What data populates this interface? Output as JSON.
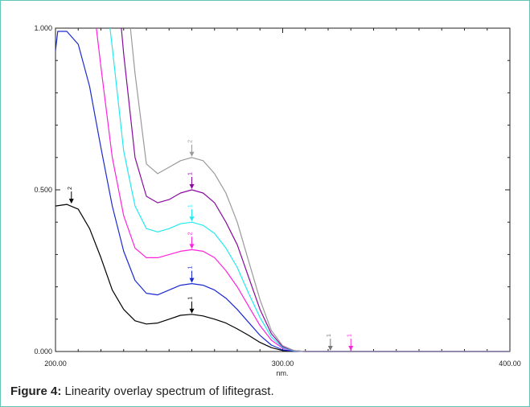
{
  "caption": {
    "label": "Figure 4:",
    "text": " Linearity overlay spectrum of lifitegrast."
  },
  "chart_data": {
    "type": "line",
    "title": "",
    "xlabel": "nm.",
    "ylabel": "",
    "xlim": [
      200,
      400
    ],
    "ylim": [
      0,
      1
    ],
    "x_ticks": [
      "200.00",
      "300.00",
      "400.00"
    ],
    "y_ticks": [
      "0.000",
      "0.500",
      "1.000"
    ],
    "grid": false,
    "series": [
      {
        "color": "#000000",
        "points": [
          [
            200,
            0.45
          ],
          [
            205,
            0.455
          ],
          [
            210,
            0.44
          ],
          [
            215,
            0.38
          ],
          [
            220,
            0.29
          ],
          [
            225,
            0.19
          ],
          [
            230,
            0.13
          ],
          [
            235,
            0.095
          ],
          [
            240,
            0.085
          ],
          [
            245,
            0.088
          ],
          [
            250,
            0.1
          ],
          [
            255,
            0.112
          ],
          [
            260,
            0.115
          ],
          [
            265,
            0.11
          ],
          [
            270,
            0.1
          ],
          [
            275,
            0.088
          ],
          [
            280,
            0.07
          ],
          [
            285,
            0.05
          ],
          [
            290,
            0.028
          ],
          [
            295,
            0.012
          ],
          [
            300,
            0.003
          ],
          [
            305,
            0.001
          ],
          [
            310,
            0
          ],
          [
            400,
            0
          ]
        ],
        "peak_marker": {
          "x": 260,
          "y": 0.115,
          "label": "1"
        },
        "start_marker": {
          "x": 207,
          "y": 0.455,
          "label": "2"
        }
      },
      {
        "color": "#1a2ad0",
        "points": [
          [
            200,
            0.93
          ],
          [
            201,
            0.99
          ],
          [
            205,
            0.99
          ],
          [
            210,
            0.95
          ],
          [
            215,
            0.82
          ],
          [
            220,
            0.63
          ],
          [
            225,
            0.45
          ],
          [
            230,
            0.31
          ],
          [
            235,
            0.22
          ],
          [
            240,
            0.18
          ],
          [
            245,
            0.175
          ],
          [
            250,
            0.19
          ],
          [
            255,
            0.205
          ],
          [
            260,
            0.21
          ],
          [
            265,
            0.205
          ],
          [
            270,
            0.19
          ],
          [
            275,
            0.165
          ],
          [
            280,
            0.13
          ],
          [
            285,
            0.09
          ],
          [
            290,
            0.05
          ],
          [
            295,
            0.02
          ],
          [
            300,
            0.005
          ],
          [
            305,
            0.001
          ],
          [
            310,
            0
          ],
          [
            400,
            0
          ]
        ],
        "peak_marker": {
          "x": 260,
          "y": 0.21,
          "label": "1"
        }
      },
      {
        "color": "#ff22dd",
        "points": [
          [
            218,
            1.0
          ],
          [
            220,
            0.88
          ],
          [
            225,
            0.6
          ],
          [
            230,
            0.42
          ],
          [
            235,
            0.32
          ],
          [
            240,
            0.29
          ],
          [
            245,
            0.29
          ],
          [
            250,
            0.3
          ],
          [
            255,
            0.31
          ],
          [
            260,
            0.315
          ],
          [
            265,
            0.31
          ],
          [
            270,
            0.29
          ],
          [
            275,
            0.25
          ],
          [
            280,
            0.2
          ],
          [
            285,
            0.14
          ],
          [
            290,
            0.08
          ],
          [
            295,
            0.035
          ],
          [
            300,
            0.01
          ],
          [
            305,
            0.002
          ],
          [
            310,
            0
          ],
          [
            400,
            0
          ]
        ],
        "peak_marker": {
          "x": 260,
          "y": 0.315,
          "label": "2"
        }
      },
      {
        "color": "#22eaf0",
        "points": [
          [
            224,
            1.0
          ],
          [
            225,
            0.94
          ],
          [
            230,
            0.62
          ],
          [
            235,
            0.45
          ],
          [
            240,
            0.38
          ],
          [
            245,
            0.37
          ],
          [
            250,
            0.38
          ],
          [
            255,
            0.395
          ],
          [
            260,
            0.4
          ],
          [
            265,
            0.39
          ],
          [
            270,
            0.365
          ],
          [
            275,
            0.32
          ],
          [
            280,
            0.26
          ],
          [
            285,
            0.18
          ],
          [
            290,
            0.105
          ],
          [
            295,
            0.045
          ],
          [
            300,
            0.012
          ],
          [
            305,
            0.002
          ],
          [
            310,
            0
          ],
          [
            400,
            0
          ]
        ],
        "peak_marker": {
          "x": 260,
          "y": 0.4,
          "label": "1"
        }
      },
      {
        "color": "#8a0aa0",
        "points": [
          [
            229,
            1.0
          ],
          [
            230,
            0.92
          ],
          [
            235,
            0.6
          ],
          [
            240,
            0.48
          ],
          [
            245,
            0.46
          ],
          [
            250,
            0.47
          ],
          [
            255,
            0.49
          ],
          [
            260,
            0.5
          ],
          [
            265,
            0.49
          ],
          [
            270,
            0.46
          ],
          [
            275,
            0.4
          ],
          [
            280,
            0.33
          ],
          [
            285,
            0.23
          ],
          [
            290,
            0.13
          ],
          [
            295,
            0.055
          ],
          [
            300,
            0.015
          ],
          [
            305,
            0.003
          ],
          [
            310,
            0
          ],
          [
            400,
            0
          ]
        ],
        "peak_marker": {
          "x": 260,
          "y": 0.5,
          "label": "1"
        }
      },
      {
        "color": "#9a9a9a",
        "points": [
          [
            233,
            1.0
          ],
          [
            235,
            0.86
          ],
          [
            240,
            0.58
          ],
          [
            245,
            0.55
          ],
          [
            250,
            0.57
          ],
          [
            255,
            0.59
          ],
          [
            260,
            0.6
          ],
          [
            265,
            0.59
          ],
          [
            270,
            0.55
          ],
          [
            275,
            0.49
          ],
          [
            280,
            0.4
          ],
          [
            285,
            0.28
          ],
          [
            290,
            0.16
          ],
          [
            295,
            0.065
          ],
          [
            300,
            0.018
          ],
          [
            305,
            0.003
          ],
          [
            310,
            0
          ],
          [
            400,
            0
          ]
        ],
        "peak_marker": {
          "x": 260,
          "y": 0.6,
          "label": "2"
        }
      }
    ],
    "extra_markers": [
      {
        "x": 321,
        "y": 0.0,
        "color": "#777777",
        "label": "1"
      },
      {
        "x": 330,
        "y": 0.0,
        "color": "#ff22dd",
        "label": "1"
      }
    ]
  }
}
